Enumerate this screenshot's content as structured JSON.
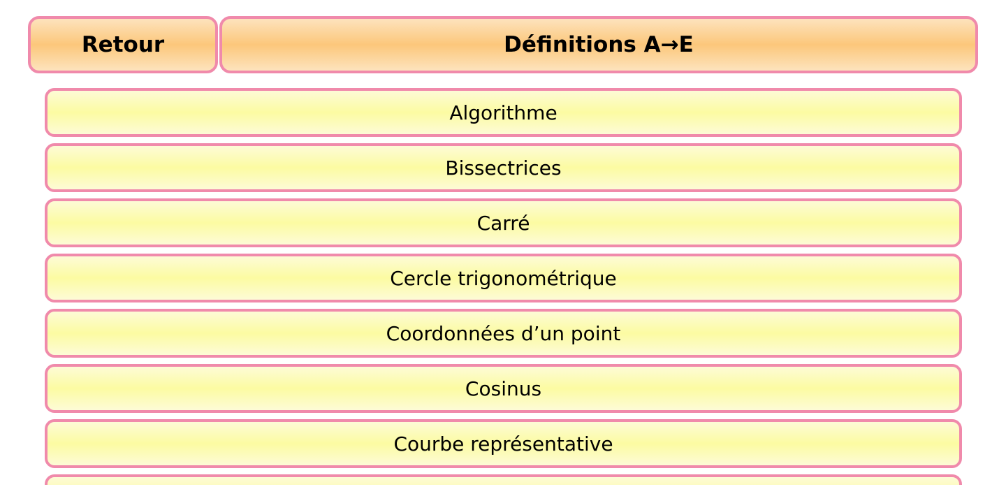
{
  "header": {
    "back_label": "Retour",
    "title": "Définitions A→E"
  },
  "items": [
    {
      "label": "Algorithme"
    },
    {
      "label": "Bissectrices"
    },
    {
      "label": "Carré"
    },
    {
      "label": "Cercle trigonométrique"
    },
    {
      "label": "Coordonnées d’un point"
    },
    {
      "label": "Cosinus"
    },
    {
      "label": "Courbe représentative"
    },
    {
      "label": ""
    }
  ]
}
